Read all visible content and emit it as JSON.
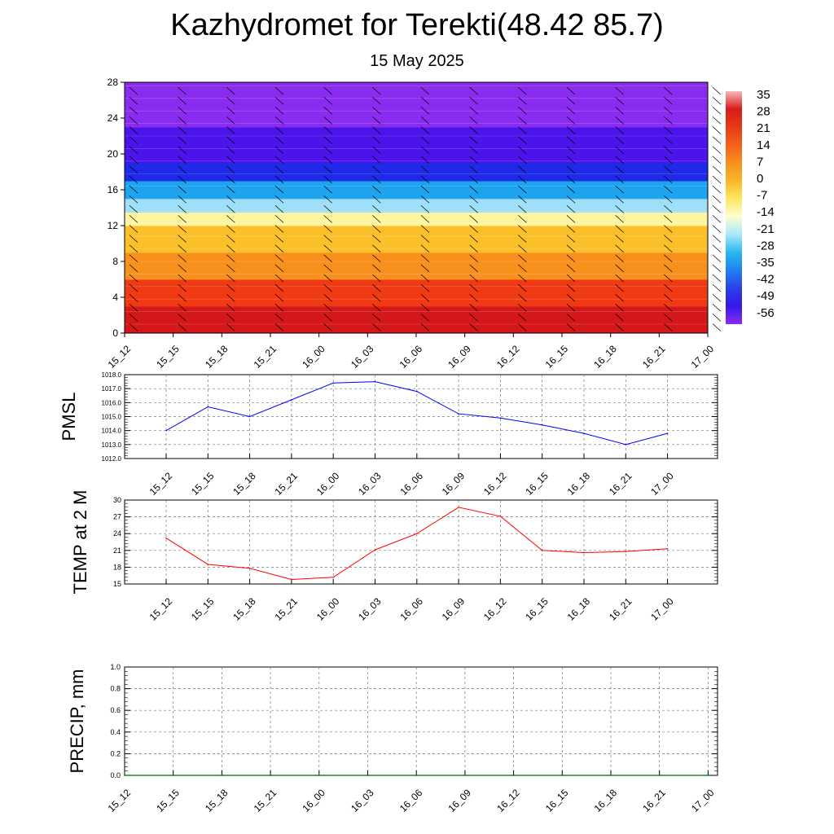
{
  "header": {
    "title": "Kazhydromet for Terekti(48.42 85.7)",
    "subtitle": "15 May 2025"
  },
  "chart_data": [
    {
      "type": "heatmap",
      "name": "temperature-height-section",
      "x_labels": [
        "15_12",
        "15_15",
        "15_18",
        "15_21",
        "16_00",
        "16_03",
        "16_06",
        "16_09",
        "16_12",
        "16_15",
        "16_18",
        "16_21",
        "17_00"
      ],
      "y_ticks": [
        0,
        4,
        8,
        12,
        16,
        20,
        24,
        28
      ],
      "ylim": [
        0,
        28
      ],
      "colorbar": {
        "labels": [
          "35",
          "28",
          "21",
          "14",
          "7",
          "0",
          "-7",
          "-14",
          "-21",
          "-28",
          "-35",
          "-42",
          "-49",
          "-56"
        ],
        "colors_top_to_bottom": [
          "#f7b8b8",
          "#d81a1a",
          "#e83a14",
          "#f5601a",
          "#f8901e",
          "#f8b628",
          "#fde860",
          "#fffdd0",
          "#a8e8f8",
          "#29b8f0",
          "#2080f0",
          "#2a40e8",
          "#3418e8",
          "#8a2cf0"
        ]
      },
      "layers": [
        {
          "from": 0,
          "to": 3,
          "color": "#d4171a"
        },
        {
          "from": 3,
          "to": 6,
          "color": "#f03a14"
        },
        {
          "from": 6,
          "to": 9,
          "color": "#f8901e"
        },
        {
          "from": 9,
          "to": 12,
          "color": "#fbbf2a"
        },
        {
          "from": 12,
          "to": 13.5,
          "color": "#fff4a0"
        },
        {
          "from": 13.5,
          "to": 15,
          "color": "#9fdff8"
        },
        {
          "from": 15,
          "to": 17,
          "color": "#1ea4ee"
        },
        {
          "from": 17,
          "to": 19,
          "color": "#1f2ae8"
        },
        {
          "from": 19,
          "to": 23,
          "color": "#4a14ea"
        },
        {
          "from": 23,
          "to": 28,
          "color": "#8a2cf0"
        }
      ]
    },
    {
      "type": "line",
      "name": "pmsl",
      "ylabel": "PMSL",
      "x": [
        "15_12",
        "15_15",
        "15_18",
        "15_21",
        "16_00",
        "16_03",
        "16_06",
        "16_09",
        "16_12",
        "16_15",
        "16_18",
        "16_21",
        "17_00"
      ],
      "values": [
        1014.0,
        1015.7,
        1015.0,
        1016.2,
        1017.4,
        1017.5,
        1016.8,
        1015.2,
        1014.9,
        1014.4,
        1013.8,
        1013.0,
        1013.8
      ],
      "ylim": [
        1012.0,
        1018.0
      ],
      "y_ticks": [
        "1012.0",
        "1013.0",
        "1014.0",
        "1015.0",
        "1016.0",
        "1017.0",
        "1018.0"
      ],
      "color": "#0000ff",
      "grid": true
    },
    {
      "type": "line",
      "name": "temp-2m",
      "ylabel": "TEMP at 2 M",
      "x": [
        "15_12",
        "15_15",
        "15_18",
        "15_21",
        "16_00",
        "16_03",
        "16_06",
        "16_09",
        "16_12",
        "16_15",
        "16_18",
        "16_21",
        "17_00"
      ],
      "values": [
        23.2,
        18.5,
        17.8,
        15.8,
        16.2,
        21.1,
        24.0,
        28.7,
        27.1,
        21.0,
        20.6,
        20.8,
        21.3
      ],
      "ylim": [
        15,
        30
      ],
      "y_ticks": [
        "15",
        "18",
        "21",
        "24",
        "27",
        "30"
      ],
      "color": "#ff0000",
      "grid": true
    },
    {
      "type": "line",
      "name": "precip",
      "ylabel": "PRECIP, mm",
      "x": [
        "15_12",
        "15_15",
        "15_18",
        "15_21",
        "16_00",
        "16_03",
        "16_06",
        "16_09",
        "16_12",
        "16_15",
        "16_18",
        "16_21",
        "17_00"
      ],
      "values": [
        0,
        0,
        0,
        0,
        0,
        0,
        0,
        0,
        0,
        0,
        0,
        0,
        0
      ],
      "ylim": [
        0.0,
        1.0
      ],
      "y_ticks": [
        "0.0",
        "0.2",
        "0.4",
        "0.6",
        "0.8",
        "1.0"
      ],
      "color": "#006400",
      "grid": true
    }
  ]
}
